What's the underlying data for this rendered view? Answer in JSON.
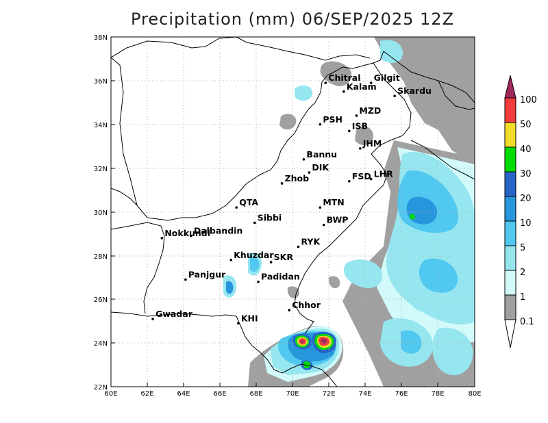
{
  "title": "Precipitation (mm) 06/SEP/2025 12Z",
  "x_ticks": [
    "60E",
    "62E",
    "64E",
    "66E",
    "68E",
    "70E",
    "72E",
    "74E",
    "76E",
    "78E",
    "80E"
  ],
  "y_ticks": [
    "22N",
    "24N",
    "26N",
    "28N",
    "30N",
    "32N",
    "34N",
    "36N",
    "38N"
  ],
  "colorbar": {
    "labels": [
      "0.1",
      "1",
      "2",
      "5",
      "10",
      "20",
      "30",
      "40",
      "50",
      "100"
    ],
    "colors": [
      "#a0a0a0",
      "#d2fafa",
      "#96e6f0",
      "#50c8f0",
      "#2896dc",
      "#2864c8",
      "#00dc00",
      "#f0dc28",
      "#f03c3c",
      "#a0285a"
    ]
  },
  "cities": [
    {
      "name": "Chitral",
      "lon": 71.8,
      "lat": 35.9
    },
    {
      "name": "Gilgit",
      "lon": 74.3,
      "lat": 35.9
    },
    {
      "name": "Kalam",
      "lon": 72.8,
      "lat": 35.5
    },
    {
      "name": "Skardu",
      "lon": 75.6,
      "lat": 35.3
    },
    {
      "name": "MZD",
      "lon": 73.5,
      "lat": 34.4
    },
    {
      "name": "PSH",
      "lon": 71.5,
      "lat": 34.0
    },
    {
      "name": "ISB",
      "lon": 73.1,
      "lat": 33.7
    },
    {
      "name": "JHM",
      "lon": 73.7,
      "lat": 32.9
    },
    {
      "name": "Bannu",
      "lon": 70.6,
      "lat": 32.4
    },
    {
      "name": "DIK",
      "lon": 70.9,
      "lat": 31.8
    },
    {
      "name": "FSD",
      "lon": 73.1,
      "lat": 31.4
    },
    {
      "name": "LHR",
      "lon": 74.3,
      "lat": 31.5
    },
    {
      "name": "Zhob",
      "lon": 69.4,
      "lat": 31.3
    },
    {
      "name": "QTA",
      "lon": 66.9,
      "lat": 30.2
    },
    {
      "name": "MTN",
      "lon": 71.5,
      "lat": 30.2
    },
    {
      "name": "Sibbi",
      "lon": 67.9,
      "lat": 29.5
    },
    {
      "name": "BWP",
      "lon": 71.7,
      "lat": 29.4
    },
    {
      "name": "Dalbandin",
      "lon": 64.4,
      "lat": 28.9
    },
    {
      "name": "Nokkundi",
      "lon": 62.8,
      "lat": 28.8
    },
    {
      "name": "RYK",
      "lon": 70.3,
      "lat": 28.4
    },
    {
      "name": "Khuzdar",
      "lon": 66.6,
      "lat": 27.8
    },
    {
      "name": "SKR",
      "lon": 68.8,
      "lat": 27.7
    },
    {
      "name": "Panjgur",
      "lon": 64.1,
      "lat": 26.9
    },
    {
      "name": "Padidan",
      "lon": 68.1,
      "lat": 26.8
    },
    {
      "name": "Chhor",
      "lon": 69.8,
      "lat": 25.5
    },
    {
      "name": "KHI",
      "lon": 67.0,
      "lat": 24.9
    },
    {
      "name": "Gwadar",
      "lon": 62.3,
      "lat": 25.1
    }
  ]
}
